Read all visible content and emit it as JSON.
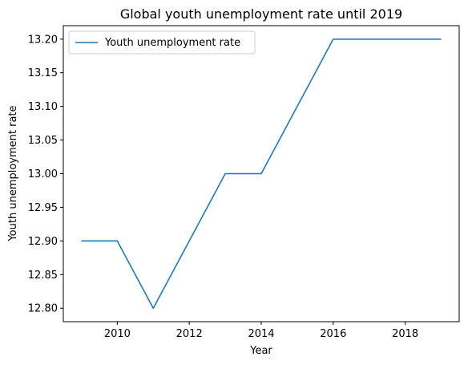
{
  "chart_data": {
    "type": "line",
    "title": "Global youth unemployment rate until 2019",
    "xlabel": "Year",
    "ylabel": "Youth unemployment rate",
    "x": [
      2009,
      2010,
      2011,
      2012,
      2013,
      2014,
      2015,
      2016,
      2017,
      2018,
      2019
    ],
    "series": [
      {
        "name": "Youth unemployment rate",
        "values": [
          12.9,
          12.9,
          12.8,
          12.9,
          13.0,
          13.0,
          13.1,
          13.2,
          13.2,
          13.2,
          13.2
        ],
        "color": "#1f77b4"
      }
    ],
    "xlim": [
      2008.5,
      2019.5
    ],
    "ylim": [
      12.78,
      13.22
    ],
    "xticks": [
      2010,
      2012,
      2014,
      2016,
      2018
    ],
    "yticks": [
      12.8,
      12.85,
      12.9,
      12.95,
      13.0,
      13.05,
      13.1,
      13.15,
      13.2
    ],
    "ytick_labels": [
      "12.80",
      "12.85",
      "12.90",
      "12.95",
      "13.00",
      "13.05",
      "13.10",
      "13.15",
      "13.20"
    ],
    "grid": false,
    "legend": "upper-left"
  }
}
